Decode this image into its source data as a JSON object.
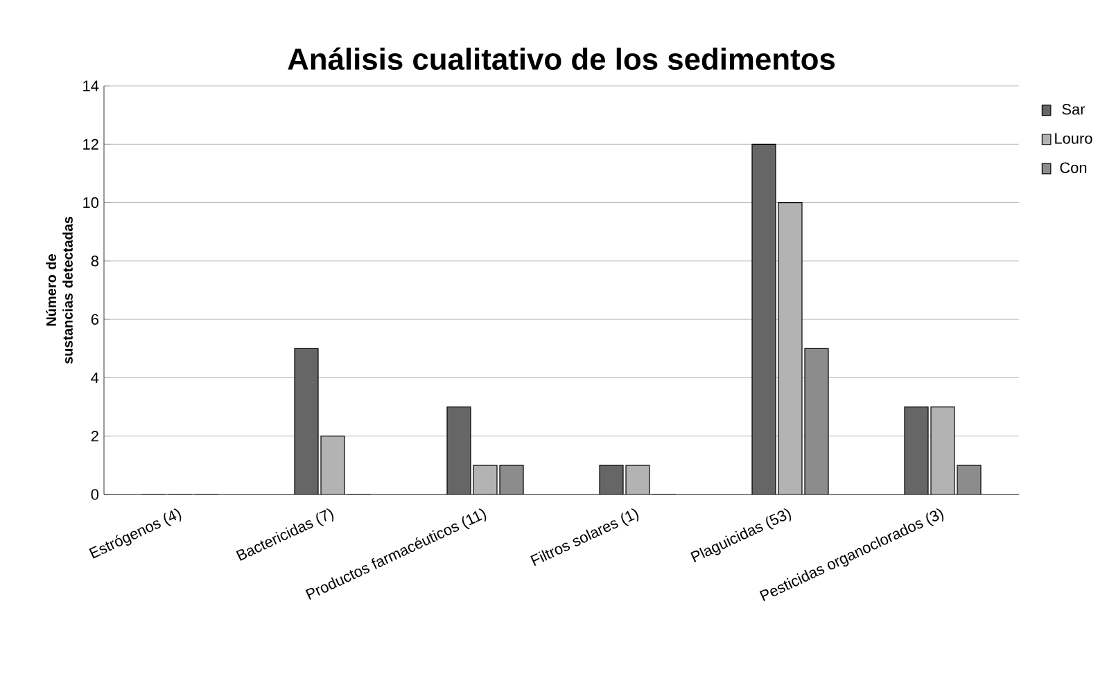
{
  "chart_data": {
    "type": "bar",
    "title": "Análisis cualitativo de los sedimentos",
    "ylabel": "Número de sustancias detectadas",
    "categories": [
      "Estrógenos (4)",
      "Bactericidas (7)",
      "Productos farmacéuticos (11)",
      "Filtros solares (1)",
      "Plaguicidas (53)",
      "Pesticidas organoclorados (3)"
    ],
    "series": [
      {
        "name": "Sar",
        "color": "#666666",
        "values": [
          0,
          5,
          3,
          1,
          12,
          3
        ]
      },
      {
        "name": "Louro",
        "color": "#b3b3b3",
        "values": [
          0,
          2,
          1,
          1,
          10,
          3
        ]
      },
      {
        "name": "Con",
        "color": "#8c8c8c",
        "values": [
          0,
          0,
          1,
          0,
          5,
          1
        ]
      }
    ],
    "ylim": [
      0,
      14
    ],
    "yticks": [
      0,
      2,
      4,
      6,
      8,
      10,
      12,
      14
    ],
    "grid": "y",
    "legend": "top right"
  }
}
